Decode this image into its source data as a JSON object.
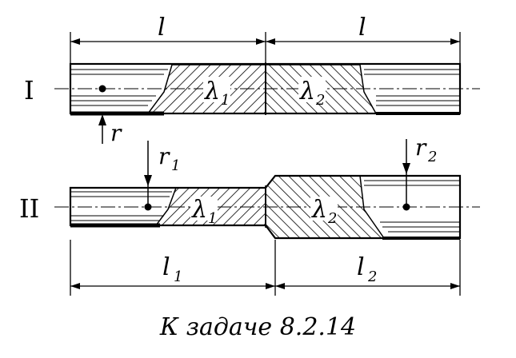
{
  "figure": {
    "upper": {
      "label": "I",
      "left_length": "l",
      "right_length": "l",
      "left_material": "λ",
      "left_material_sub": "1",
      "right_material": "λ",
      "right_material_sub": "2",
      "point_label": "r"
    },
    "lower": {
      "label": "II",
      "left_length": "l",
      "left_length_sub": "1",
      "right_length": "l",
      "right_length_sub": "2",
      "left_material": "λ",
      "left_material_sub": "1",
      "right_material": "λ",
      "right_material_sub": "2",
      "left_point": "r",
      "left_point_sub": "1",
      "right_point": "r",
      "right_point_sub": "2"
    }
  },
  "caption": "К задаче 8.2.14"
}
